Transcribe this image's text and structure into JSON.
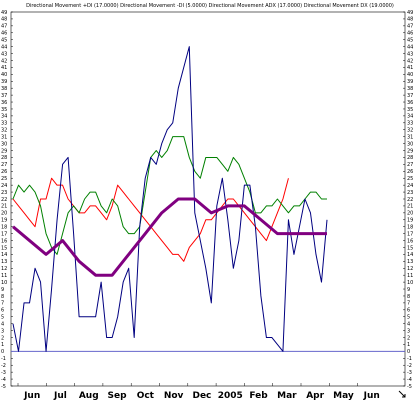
{
  "chart_data": {
    "type": "line",
    "title": "Directional Movement +DI (17.0000) Directional Movement -DI (5.0000) Directional Movement ADX (17.0000) Directional Movement DX (19.0000)",
    "ylim": [
      -5,
      49
    ],
    "y_ticks": [
      -5,
      -4,
      -3,
      -2,
      -1,
      0,
      1,
      2,
      3,
      4,
      5,
      6,
      7,
      8,
      9,
      10,
      11,
      12,
      13,
      14,
      15,
      16,
      17,
      18,
      19,
      20,
      21,
      22,
      23,
      24,
      25,
      26,
      27,
      28,
      29,
      30,
      31,
      32,
      33,
      34,
      35,
      36,
      37,
      38,
      39,
      40,
      41,
      42,
      43,
      44,
      45,
      46,
      47,
      48,
      49
    ],
    "x_labels": [
      "Jun",
      "Jul",
      "Aug",
      "Sep",
      "Oct",
      "Nov",
      "Dec",
      "2005",
      "Feb",
      "Mar",
      "Apr",
      "May",
      "Jun"
    ],
    "baseline": 0,
    "grid": false,
    "colors": {
      "blue": "#000080",
      "green": "#008000",
      "red": "#ff0000",
      "purple": "#800080",
      "baseline": "#6666cc"
    },
    "series": [
      {
        "color_key": "blue",
        "x": [
          0,
          1,
          2,
          3,
          4,
          5,
          6,
          7,
          8,
          9,
          10,
          11,
          12,
          13,
          14,
          15,
          16,
          17,
          18,
          19,
          20,
          21,
          22,
          23,
          24,
          25,
          26,
          27,
          28,
          29,
          30,
          31,
          32,
          33,
          34,
          35,
          36,
          37,
          38,
          39,
          40,
          41,
          42,
          43,
          44,
          45,
          46,
          47,
          48,
          49,
          50,
          51,
          52,
          53,
          54,
          55,
          56,
          57
        ],
        "values": [
          4,
          0,
          7,
          7,
          12,
          10,
          0,
          9,
          19,
          27,
          28,
          17,
          5,
          5,
          5,
          5,
          10,
          2,
          2,
          5,
          10,
          12,
          2,
          18,
          25,
          28,
          27,
          30,
          32,
          33,
          38,
          41,
          44,
          20,
          16,
          12,
          7,
          21,
          25,
          19,
          12,
          16,
          24,
          24,
          18,
          8,
          2,
          2,
          1,
          0,
          19,
          14,
          18,
          22,
          20,
          14,
          10,
          19
        ]
      },
      {
        "color_key": "green",
        "x": [
          0,
          1,
          2,
          3,
          4,
          5,
          6,
          7,
          8,
          9,
          10,
          11,
          12,
          13,
          14,
          15,
          16,
          17,
          18,
          19,
          20,
          21,
          22,
          23,
          24,
          25,
          26,
          27,
          28,
          29,
          30,
          31,
          32,
          33,
          34,
          35,
          36,
          37,
          38,
          39,
          40,
          41,
          42,
          43,
          44,
          45,
          46,
          47,
          48,
          49,
          50,
          51,
          52,
          53,
          54,
          55,
          56,
          57
        ],
        "values": [
          22,
          24,
          23,
          24,
          23,
          21,
          17,
          15,
          14,
          17,
          20,
          21,
          20,
          22,
          23,
          23,
          21,
          20,
          22,
          21,
          18,
          17,
          17,
          18,
          23,
          28,
          29,
          28,
          29,
          31,
          31,
          31,
          28,
          26,
          25,
          28,
          28,
          28,
          27,
          26,
          28,
          27,
          25,
          23,
          20,
          20,
          21,
          21,
          22,
          21,
          20,
          21,
          21,
          22,
          23,
          23,
          22,
          22
        ]
      },
      {
        "color_key": "red",
        "x": [
          0,
          1,
          2,
          3,
          4,
          5,
          6,
          7,
          8,
          9,
          10,
          11,
          12,
          13,
          14,
          15,
          16,
          17,
          18,
          19,
          20,
          21,
          22,
          23,
          24,
          25,
          26,
          27,
          28,
          29,
          30,
          31,
          32,
          33,
          34,
          35,
          36,
          37,
          38,
          39,
          40,
          41,
          42,
          43,
          44,
          45,
          46,
          47,
          48,
          49,
          50
        ],
        "values": [
          22,
          21,
          20,
          19,
          18,
          22,
          22,
          25,
          24,
          24,
          22,
          21,
          20,
          20,
          21,
          21,
          20,
          19,
          21,
          24,
          23,
          22,
          21,
          20,
          19,
          18,
          17,
          16,
          15,
          14,
          14,
          13,
          15,
          16,
          17,
          19,
          19,
          20,
          21,
          22,
          22,
          21,
          20,
          19,
          18,
          17,
          16,
          18,
          20,
          22,
          25
        ]
      },
      {
        "color_key": "purple",
        "x": [
          0,
          3,
          6,
          9,
          12,
          15,
          18,
          21,
          24,
          27,
          30,
          33,
          36,
          39,
          42,
          45,
          48,
          51,
          54,
          57
        ],
        "values": [
          18,
          16,
          14,
          16,
          13,
          11,
          11,
          14,
          17,
          20,
          22,
          22,
          20,
          21,
          21,
          19,
          17,
          17,
          17,
          17
        ]
      }
    ]
  }
}
